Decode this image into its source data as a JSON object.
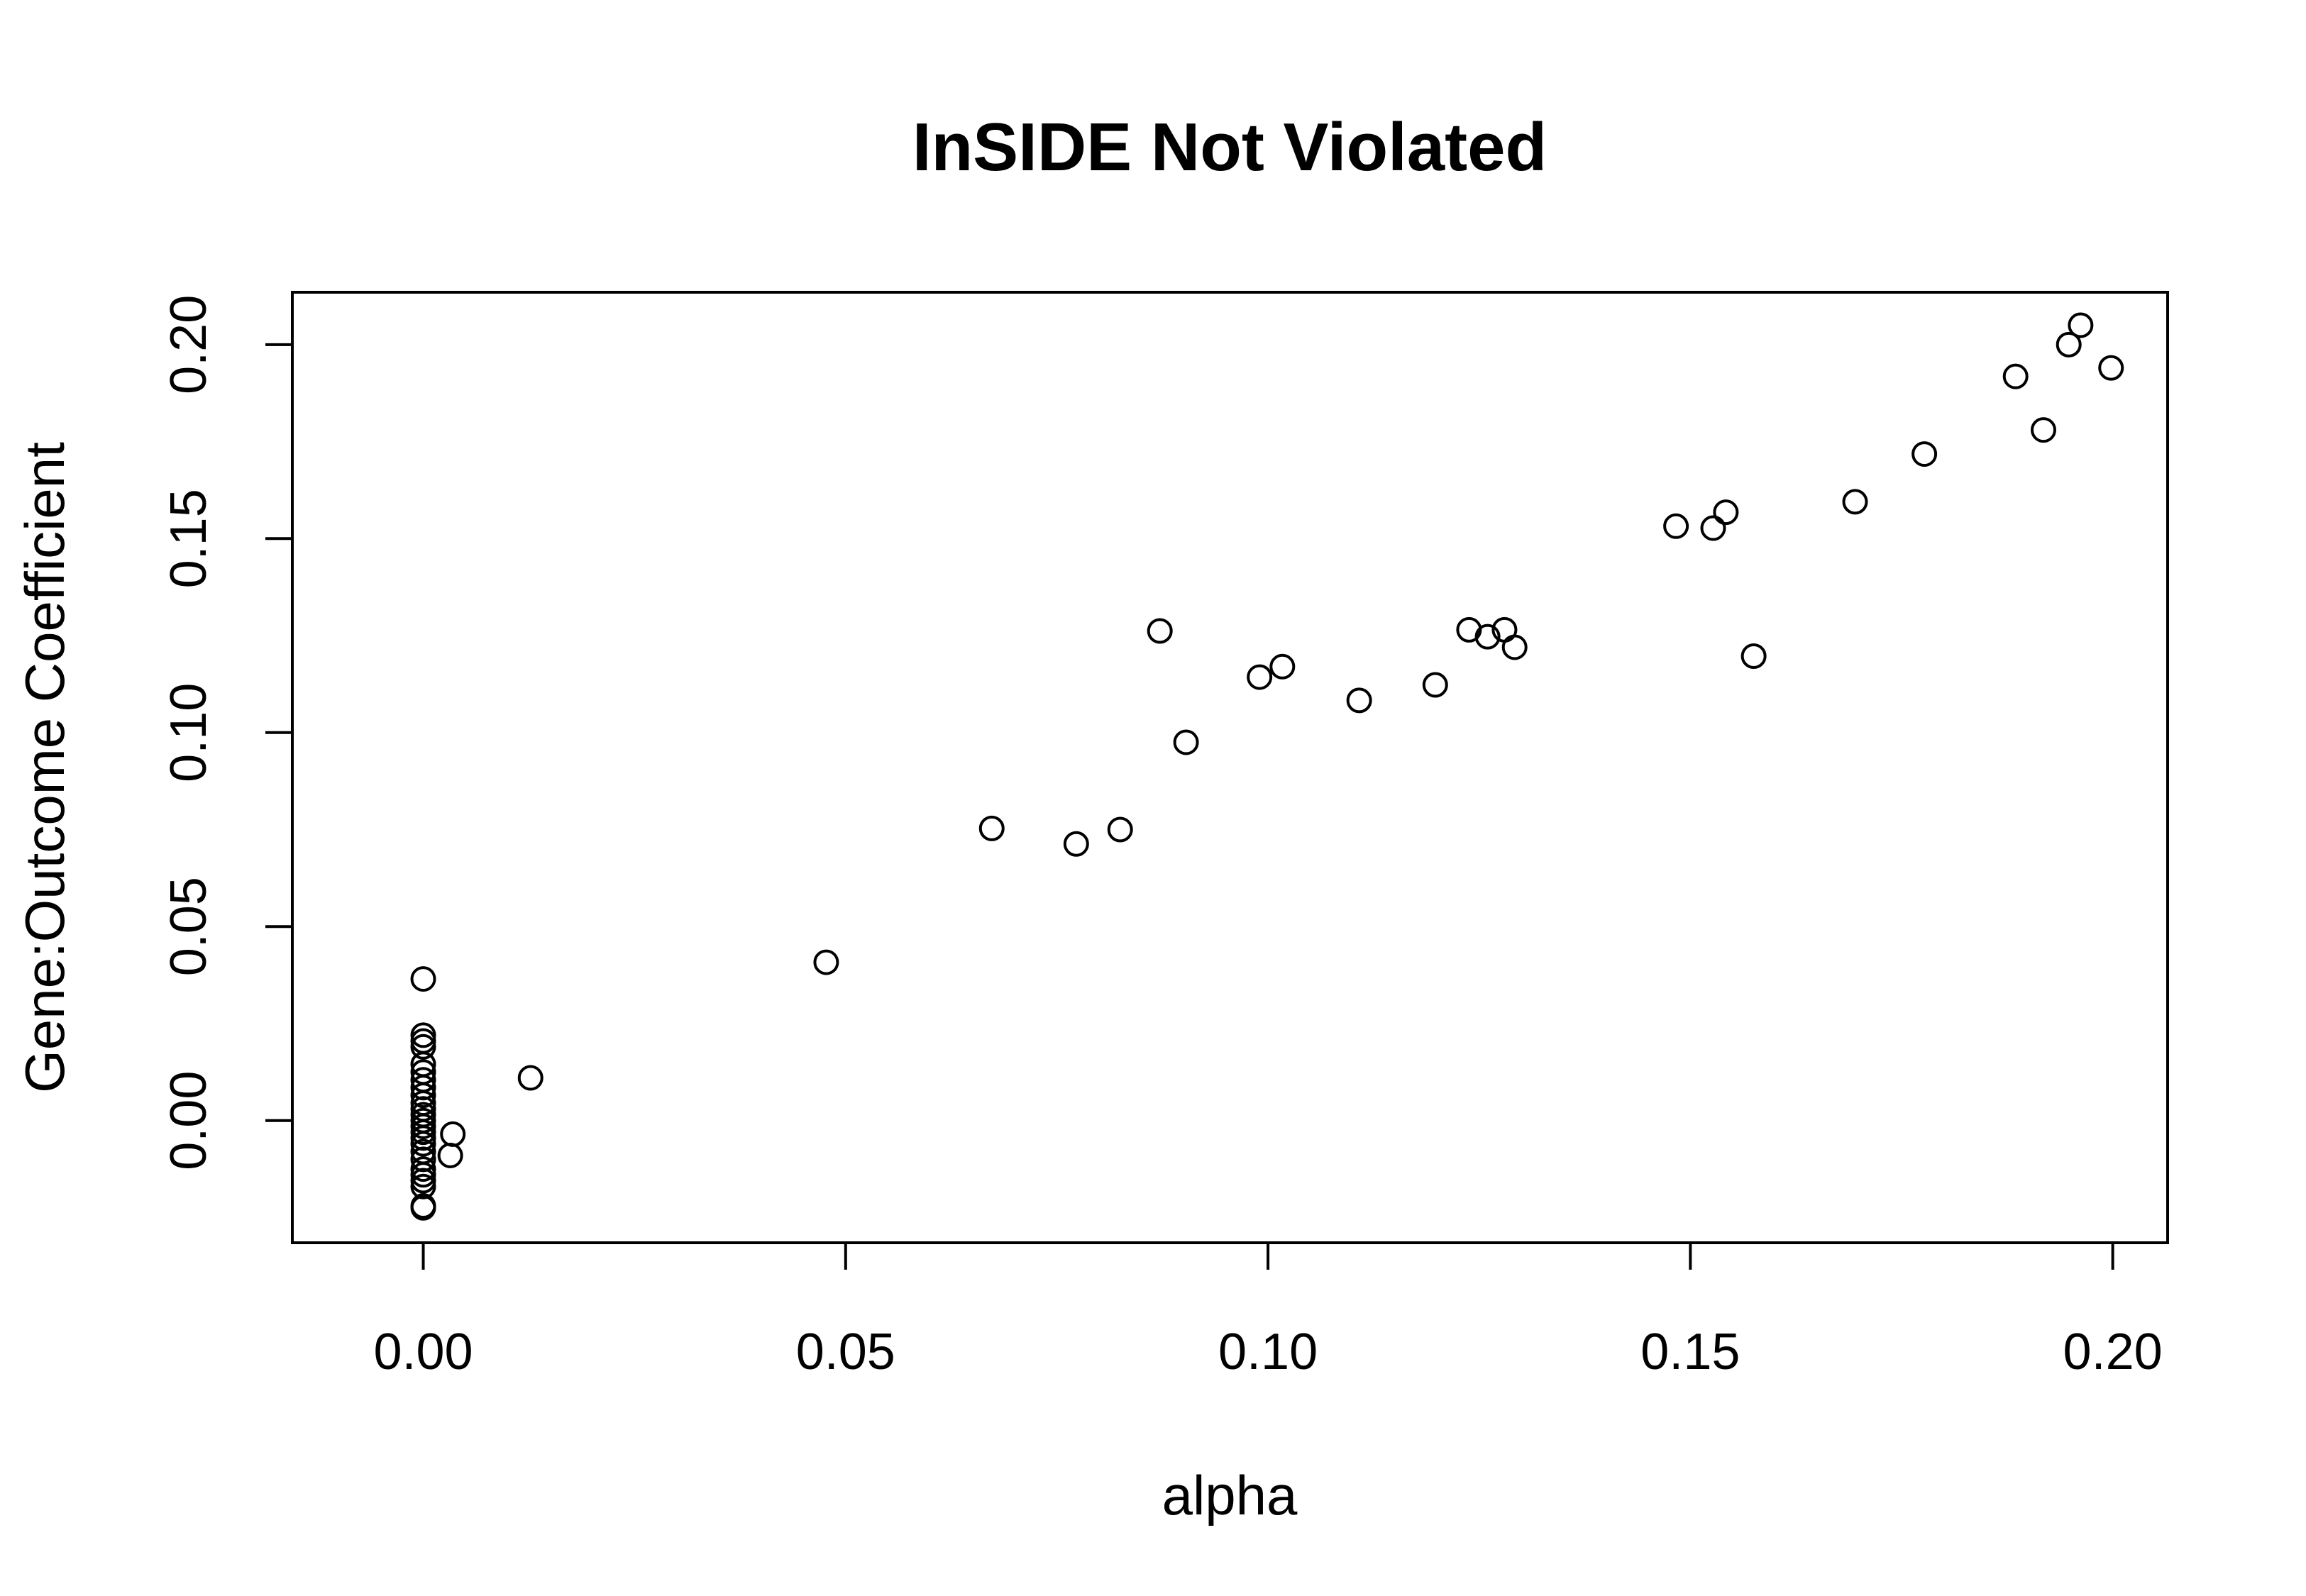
{
  "chart_data": {
    "type": "scatter",
    "title": "InSIDE Not Violated",
    "xlabel": "alpha",
    "ylabel": "Gene:Outcome Coefficient",
    "xlim": [
      -0.0155,
      0.2065
    ],
    "ylim": [
      -0.0315,
      0.2135
    ],
    "xticks": [
      0.0,
      0.05,
      0.1,
      0.15,
      0.2
    ],
    "xtick_labels": [
      "0.00",
      "0.05",
      "0.10",
      "0.15",
      "0.20"
    ],
    "yticks": [
      0.0,
      0.05,
      0.1,
      0.15,
      0.2
    ],
    "ytick_labels": [
      "0.00",
      "0.05",
      "0.10",
      "0.15",
      "0.20"
    ],
    "grid": false,
    "legend": "none",
    "marker": "open-circle",
    "points": [
      {
        "x": 0.0,
        "y": 0.0365
      },
      {
        "x": 0.0,
        "y": 0.022
      },
      {
        "x": 0.0,
        "y": 0.0205
      },
      {
        "x": 0.0,
        "y": 0.019
      },
      {
        "x": 0.0,
        "y": 0.0145
      },
      {
        "x": 0.0,
        "y": 0.0125
      },
      {
        "x": 0.0,
        "y": 0.0105
      },
      {
        "x": 0.0,
        "y": 0.0085
      },
      {
        "x": 0.0,
        "y": 0.0065
      },
      {
        "x": 0.0,
        "y": 0.0045
      },
      {
        "x": 0.0,
        "y": 0.003
      },
      {
        "x": 0.0,
        "y": 0.0015
      },
      {
        "x": 0.0,
        "y": 0.0
      },
      {
        "x": 0.0,
        "y": -0.0015
      },
      {
        "x": 0.0,
        "y": -0.003
      },
      {
        "x": 0.0,
        "y": -0.0045
      },
      {
        "x": 0.0,
        "y": -0.006
      },
      {
        "x": 0.0,
        "y": -0.008
      },
      {
        "x": 0.0,
        "y": -0.01
      },
      {
        "x": 0.0,
        "y": -0.0125
      },
      {
        "x": 0.0,
        "y": -0.014
      },
      {
        "x": 0.0,
        "y": -0.0155
      },
      {
        "x": 0.0,
        "y": -0.017
      },
      {
        "x": 0.0,
        "y": -0.022
      },
      {
        "x": 0.0,
        "y": -0.0225
      },
      {
        "x": 0.0035,
        "y": -0.0035
      },
      {
        "x": 0.0032,
        "y": -0.009
      },
      {
        "x": 0.0127,
        "y": 0.011
      },
      {
        "x": 0.0477,
        "y": 0.0408
      },
      {
        "x": 0.0673,
        "y": 0.0753
      },
      {
        "x": 0.0773,
        "y": 0.0713
      },
      {
        "x": 0.0825,
        "y": 0.075
      },
      {
        "x": 0.0872,
        "y": 0.1262
      },
      {
        "x": 0.0903,
        "y": 0.0975
      },
      {
        "x": 0.099,
        "y": 0.1143
      },
      {
        "x": 0.1017,
        "y": 0.117
      },
      {
        "x": 0.1108,
        "y": 0.1083
      },
      {
        "x": 0.1198,
        "y": 0.1123
      },
      {
        "x": 0.1238,
        "y": 0.1265
      },
      {
        "x": 0.126,
        "y": 0.1247
      },
      {
        "x": 0.128,
        "y": 0.1265
      },
      {
        "x": 0.1292,
        "y": 0.122
      },
      {
        "x": 0.1483,
        "y": 0.1532
      },
      {
        "x": 0.1527,
        "y": 0.1527
      },
      {
        "x": 0.1542,
        "y": 0.1568
      },
      {
        "x": 0.1575,
        "y": 0.1197
      },
      {
        "x": 0.1695,
        "y": 0.1595
      },
      {
        "x": 0.1777,
        "y": 0.1718
      },
      {
        "x": 0.1885,
        "y": 0.1918
      },
      {
        "x": 0.1918,
        "y": 0.178
      },
      {
        "x": 0.1948,
        "y": 0.2
      },
      {
        "x": 0.1962,
        "y": 0.205
      },
      {
        "x": 0.1998,
        "y": 0.194
      }
    ]
  }
}
